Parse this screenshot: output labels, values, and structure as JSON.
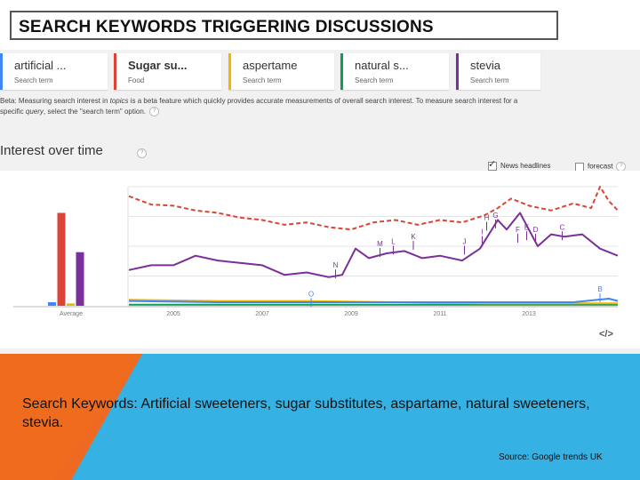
{
  "slide_title": "SEARCH KEYWORDS TRIGGERING DISCUSSIONS",
  "terms": [
    {
      "name": "artificial ...",
      "type": "Search term",
      "color": "#4285f4",
      "bold": false
    },
    {
      "name": "Sugar su...",
      "type": "Food",
      "color": "#db4437",
      "bold": true
    },
    {
      "name": "aspertame",
      "type": "Search term",
      "color": "#f4b400",
      "bold": false
    },
    {
      "name": "natural s...",
      "type": "Search term",
      "color": "#0f9d58",
      "bold": false
    },
    {
      "name": "stevia",
      "type": "Search term",
      "color": "#7b2f99",
      "bold": false
    }
  ],
  "beta_note": {
    "part1": "Beta: Measuring search interest in ",
    "topics": "topics",
    "part2": " is a beta feature which quickly provides accurate measurements of overall search interest. To measure search interest for a specific ",
    "query": "query",
    "part3": ", select the \"search term\" option."
  },
  "section_title": "Interest over time",
  "options": {
    "news_headlines": {
      "label": "News headlines",
      "checked": true
    },
    "forecast": {
      "label": "forecast",
      "checked": false
    }
  },
  "embed_label": "</>",
  "chart_data": {
    "type": "line",
    "x_ticks": [
      "2005",
      "2007",
      "2009",
      "2011",
      "2013"
    ],
    "average_label": "Average",
    "averages": [
      {
        "name": "artificial ...",
        "value": 3
      },
      {
        "name": "Sugar su...",
        "value": 78
      },
      {
        "name": "aspertame",
        "value": 2
      },
      {
        "name": "stevia",
        "value": 45
      }
    ],
    "series": [
      {
        "name": "Sugar su...",
        "color": "#db4437",
        "style": "dashed",
        "x": [
          2004.0,
          2004.5,
          2005.0,
          2005.5,
          2006.0,
          2006.5,
          2007.0,
          2007.5,
          2008.0,
          2008.5,
          2009.0,
          2009.5,
          2010.0,
          2010.5,
          2011.0,
          2011.5,
          2012.0,
          2012.3,
          2012.6,
          2013.0,
          2013.5,
          2014.0,
          2014.4,
          2014.6,
          2014.8,
          2015.0
        ],
        "y": [
          92,
          85,
          84,
          80,
          78,
          74,
          72,
          68,
          70,
          66,
          64,
          70,
          72,
          68,
          72,
          70,
          76,
          82,
          90,
          84,
          80,
          86,
          82,
          100,
          88,
          80
        ]
      },
      {
        "name": "stevia",
        "color": "#7b2f99",
        "style": "solid",
        "x": [
          2004.0,
          2004.5,
          2005.0,
          2005.5,
          2006.0,
          2006.5,
          2007.0,
          2007.5,
          2008.0,
          2008.5,
          2008.8,
          2009.1,
          2009.4,
          2009.8,
          2010.2,
          2010.6,
          2011.0,
          2011.5,
          2011.9,
          2012.3,
          2012.5,
          2012.8,
          2013.2,
          2013.5,
          2013.8,
          2014.2,
          2014.6,
          2015.0
        ],
        "y": [
          30,
          34,
          34,
          42,
          38,
          36,
          34,
          26,
          28,
          24,
          26,
          48,
          40,
          44,
          46,
          40,
          42,
          38,
          48,
          72,
          64,
          78,
          50,
          60,
          58,
          60,
          48,
          42
        ]
      },
      {
        "name": "artificial ...",
        "color": "#4285f4",
        "style": "solid",
        "x": [
          2004.0,
          2006.0,
          2008.0,
          2010.0,
          2012.0,
          2014.0,
          2014.8,
          2015.0
        ],
        "y": [
          4,
          3,
          3,
          3,
          3,
          3,
          6,
          4
        ]
      },
      {
        "name": "aspertame",
        "color": "#f4b400",
        "style": "solid",
        "x": [
          2004.0,
          2006.0,
          2008.0,
          2010.0,
          2012.0,
          2014.0,
          2015.0
        ],
        "y": [
          5,
          4,
          4,
          3,
          2,
          2,
          2
        ]
      },
      {
        "name": "natural s...",
        "color": "#0f9d58",
        "style": "solid",
        "x": [
          2004.0,
          2006.0,
          2008.0,
          2010.0,
          2012.0,
          2014.0,
          2015.0
        ],
        "y": [
          1,
          1,
          1,
          1,
          1,
          1,
          1
        ]
      }
    ],
    "annotations": [
      {
        "label": "O",
        "x": 2008.1,
        "y": 2,
        "color": "#4285f4"
      },
      {
        "label": "N",
        "x": 2008.65,
        "y": 26,
        "color": "#7b2f99"
      },
      {
        "label": "M",
        "x": 2009.65,
        "y": 44,
        "color": "#7b2f99"
      },
      {
        "label": "L",
        "x": 2009.95,
        "y": 46,
        "color": "#7b2f99"
      },
      {
        "label": "K",
        "x": 2010.4,
        "y": 50,
        "color": "#7b2f99"
      },
      {
        "label": "J",
        "x": 2011.55,
        "y": 46,
        "color": "#7b2f99"
      },
      {
        "label": "I",
        "x": 2011.95,
        "y": 54,
        "color": "#7b2f99"
      },
      {
        "label": "H",
        "x": 2012.05,
        "y": 66,
        "color": "#7b2f99"
      },
      {
        "label": "G",
        "x": 2012.25,
        "y": 68,
        "color": "#7b2f99"
      },
      {
        "label": "F",
        "x": 2012.75,
        "y": 56,
        "color": "#7b2f99"
      },
      {
        "label": "E",
        "x": 2012.95,
        "y": 58,
        "color": "#7b2f99"
      },
      {
        "label": "D",
        "x": 2013.15,
        "y": 56,
        "color": "#7b2f99"
      },
      {
        "label": "C",
        "x": 2013.75,
        "y": 58,
        "color": "#7b2f99"
      },
      {
        "label": "B",
        "x": 2014.6,
        "y": 6,
        "color": "#4285f4"
      }
    ],
    "x_range": [
      2004.0,
      2015.0
    ],
    "y_range": [
      0,
      100
    ],
    "grid": true
  },
  "caption": "Search Keywords: Artificial sweeteners, sugar substitutes, aspartame, natural sweeteners, stevia.",
  "source": "Source: Google trends UK"
}
